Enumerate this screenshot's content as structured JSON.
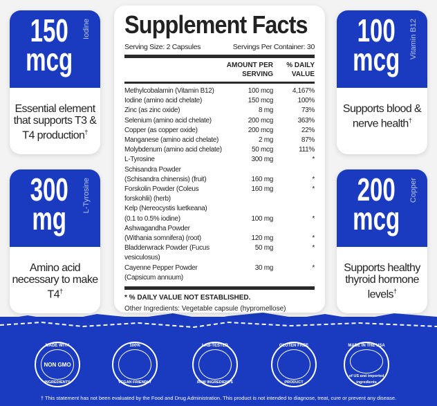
{
  "colors": {
    "brand_blue": "#1a3bbf"
  },
  "cards": [
    {
      "amount": "150",
      "unit": "mcg",
      "nutrient": "Iodine",
      "desc": "Essential element that supports T3 & T4 production",
      "mark": "†"
    },
    {
      "amount": "300",
      "unit": "mg",
      "nutrient": "L-Tyrosine",
      "desc": "Amino acid necessary to make T4",
      "mark": "†"
    },
    {
      "amount": "100",
      "unit": "mcg",
      "nutrient": "Vitamin B12",
      "desc": "Supports blood & nerve health",
      "mark": "†"
    },
    {
      "amount": "200",
      "unit": "mcg",
      "nutrient": "Copper",
      "desc": "Supports healthy thyroid hormone levels",
      "mark": "†"
    }
  ],
  "facts": {
    "title": "Supplement Facts",
    "serving_size": "Serving Size: 2 Capsules",
    "servings_per_container": "Servings Per Container: 30",
    "col_amount": "AMOUNT PER SERVING",
    "col_dv": "% DAILY VALUE",
    "rows": [
      {
        "name": "Methylcobalamin (Vitamin B12)",
        "amount": "100 mcg",
        "dv": "4,167%"
      },
      {
        "name": "Iodine (amino acid chelate)",
        "amount": "150 mcg",
        "dv": "100%"
      },
      {
        "name": "Zinc (as zinc oxide)",
        "amount": "8 mg",
        "dv": "73%"
      },
      {
        "name": "Selenium (amino acid chelate)",
        "amount": "200 mcg",
        "dv": "363%"
      },
      {
        "name": "Copper (as copper oxide)",
        "amount": "200 mcg",
        "dv": "22%"
      },
      {
        "name": "Manganese (amino acid chelate)",
        "amount": "2 mg",
        "dv": "87%"
      },
      {
        "name": "Molybdenum (amino acid chelate)",
        "amount": "50 mcg",
        "dv": "111%"
      },
      {
        "name": "L-Tyrosine",
        "amount": "300 mg",
        "dv": "*"
      },
      {
        "name": "Schisandra Powder",
        "amount": "",
        "dv": ""
      },
      {
        "name": "(Schisandra chinensis) (fruit)",
        "amount": "160 mg",
        "dv": "*"
      },
      {
        "name": "Forskolin Powder (Coleus forskohlii) (herb)",
        "amount": "160 mg",
        "dv": "*"
      },
      {
        "name": "Kelp (Nereocystis luetkeana)",
        "amount": "",
        "dv": ""
      },
      {
        "name": "(0.1 to 0.5% iodine)",
        "amount": "100 mg",
        "dv": "*"
      },
      {
        "name": "Ashwagandha Powder",
        "amount": "",
        "dv": ""
      },
      {
        "name": "(Withania somnifera) (root)",
        "amount": "120 mg",
        "dv": "*"
      },
      {
        "name": "Bladderwrack Powder (Fucus vesiculosus)",
        "amount": "50 mg",
        "dv": "*"
      },
      {
        "name": "Cayenne Pepper Powder (Capsicum annuum)",
        "amount": "30 mg",
        "dv": "*"
      }
    ],
    "dv_note": "* % DAILY VALUE NOT ESTABLISHED.",
    "other": "Other Ingredients: Vegetable capsule (hypromellose)"
  },
  "badges": [
    {
      "top": "MADE WITH",
      "center": "NON GMO",
      "bottom": "INGREDIENTS"
    },
    {
      "top": "100%",
      "center": "",
      "bottom": "VEGAN FRIENDLY"
    },
    {
      "top": "LAB-TESTED",
      "center": "",
      "bottom": "RAW INGREDIENTS"
    },
    {
      "top": "GLUTEN FREE",
      "center": "",
      "bottom": "PRODUCT"
    },
    {
      "top": "MADE IN THE USA",
      "center": "",
      "bottom": "of US and imported ingredients"
    }
  ],
  "disclaimer": "† This statement has not been evaluated by the Food and Drug Administration. This product is not intended to diagnose, treat, cure or prevent any disease."
}
